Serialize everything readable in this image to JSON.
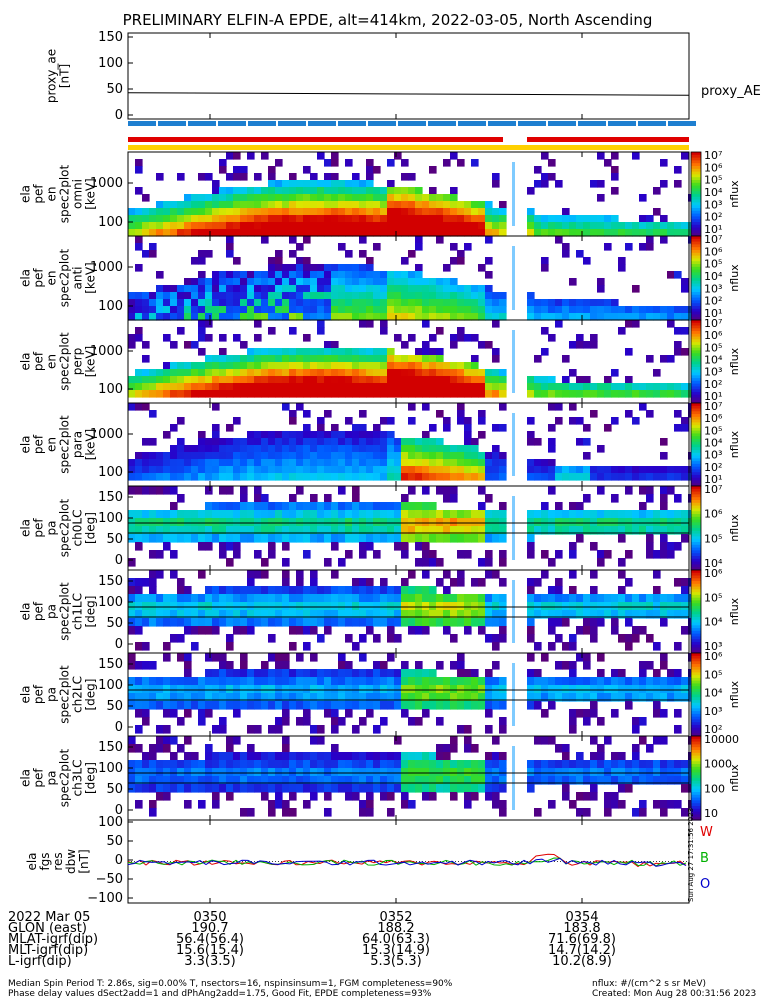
{
  "title": "PRELIMINARY ELFIN-A EPDE, alt=414km, 2022-03-05, North Ascending",
  "panels": [
    {
      "ylabel": [
        "proxy_ae",
        "[nT]"
      ],
      "yticks": [
        "150",
        "100",
        "50",
        "0"
      ],
      "right_label": "proxy_AE"
    },
    {
      "ylabel": [
        "ela",
        "pef",
        "en",
        "spec2plot",
        "omni",
        "[keV]"
      ],
      "yticks": [
        "1000",
        "100"
      ],
      "cbar_ticks": [
        "10⁷",
        "10⁶",
        "10⁵",
        "10⁴",
        "10³",
        "10²",
        "10¹"
      ],
      "cbar_label": "nflux"
    },
    {
      "ylabel": [
        "ela",
        "pef",
        "en",
        "spec2plot",
        "anti",
        "[keV]"
      ],
      "yticks": [
        "1000",
        "100"
      ],
      "cbar_ticks": [
        "10⁷",
        "10⁶",
        "10⁵",
        "10⁴",
        "10³",
        "10²",
        "10¹"
      ],
      "cbar_label": "nflux"
    },
    {
      "ylabel": [
        "ela",
        "pef",
        "en",
        "spec2plot",
        "perp",
        "[keV]"
      ],
      "yticks": [
        "1000",
        "100"
      ],
      "cbar_ticks": [
        "10⁷",
        "10⁶",
        "10⁵",
        "10⁴",
        "10³",
        "10²",
        "10¹"
      ],
      "cbar_label": "nflux"
    },
    {
      "ylabel": [
        "ela",
        "pef",
        "en",
        "spec2plot",
        "para",
        "[keV]"
      ],
      "yticks": [
        "1000",
        "100"
      ],
      "cbar_ticks": [
        "10⁷",
        "10⁶",
        "10⁵",
        "10⁴",
        "10³",
        "10²",
        "10¹"
      ],
      "cbar_label": "nflux"
    },
    {
      "ylabel": [
        "ela",
        "pef",
        "pa",
        "spec2plot",
        "ch0LC",
        "[deg]"
      ],
      "yticks": [
        "150",
        "100",
        "50",
        "0"
      ],
      "cbar_ticks": [
        "10⁷",
        "10⁶",
        "10⁵",
        "10⁴"
      ],
      "cbar_label": "nflux"
    },
    {
      "ylabel": [
        "ela",
        "pef",
        "pa",
        "spec2plot",
        "ch1LC",
        "[deg]"
      ],
      "yticks": [
        "150",
        "100",
        "50",
        "0"
      ],
      "cbar_ticks": [
        "10⁶",
        "10⁵",
        "10⁴",
        "10³"
      ],
      "cbar_label": "nflux"
    },
    {
      "ylabel": [
        "ela",
        "pef",
        "pa",
        "spec2plot",
        "ch2LC",
        "[deg]"
      ],
      "yticks": [
        "150",
        "100",
        "50",
        "0"
      ],
      "cbar_ticks": [
        "10⁶",
        "10⁵",
        "10⁴",
        "10³",
        "10²"
      ],
      "cbar_label": "nflux"
    },
    {
      "ylabel": [
        "ela",
        "pef",
        "pa",
        "spec2plot",
        "ch3LC",
        "[deg]"
      ],
      "yticks": [
        "150",
        "100",
        "50",
        "0"
      ],
      "cbar_ticks": [
        "10000",
        "1000",
        "100",
        "10"
      ],
      "cbar_label": "nflux"
    },
    {
      "ylabel": [
        "ela",
        "fgs",
        "res",
        "dbw",
        "[nT]"
      ],
      "yticks": [
        "100",
        "50",
        "0",
        "−50",
        "−100"
      ],
      "legend": [
        "W",
        "B",
        "O"
      ],
      "legend_colors": [
        "#e00000",
        "#00b000",
        "#0000cc"
      ]
    }
  ],
  "stamp": "Sun Aug 27 17:31:56 2023",
  "x_table": {
    "labels": [
      "2022 Mar 05",
      "GLON (east)",
      "MLAT-igrf(dip)",
      "MLT-igrf(dip)",
      "L-igrf(dip)"
    ],
    "columns": [
      [
        "0350",
        "190.7",
        "56.4(56.4)",
        "15.6(15.4)",
        "3.3(3.5)"
      ],
      [
        "0352",
        "188.2",
        "64.0(63.3)",
        "15.3(14.9)",
        "5.3(5.3)"
      ],
      [
        "0354",
        "183.8",
        "71.6(69.8)",
        "14.7(14.2)",
        "10.2(8.9)"
      ]
    ]
  },
  "footer": {
    "left1": "Median Spin Period T: 2.86s, sig=0.00% T, nsectors=16, nspinsinsum=1, FGM completeness=90%",
    "left2": "Phase delay values dSect2add=1 and dPhAng2add=1.75, Good Fit, EPDE completeness=93%",
    "right1": "nflux: #/(cm^2 s sr MeV)",
    "right2": "Created: Mon Aug 28 00:31:56 2023"
  },
  "chart_data": {
    "type": "heatmap",
    "x_ticks": [
      "0350",
      "0352",
      "0354"
    ],
    "proxy_ae": {
      "unit": "nT",
      "ylim": [
        -10,
        160
      ],
      "start": 42,
      "end": 37
    },
    "fgs": {
      "unit": "nT",
      "ylim": [
        -110,
        110
      ],
      "series": [
        "W",
        "B",
        "O"
      ],
      "typical_range": [
        -10,
        15
      ]
    },
    "data_gap": {
      "start_fraction": 0.68,
      "end_fraction": 0.72
    }
  }
}
